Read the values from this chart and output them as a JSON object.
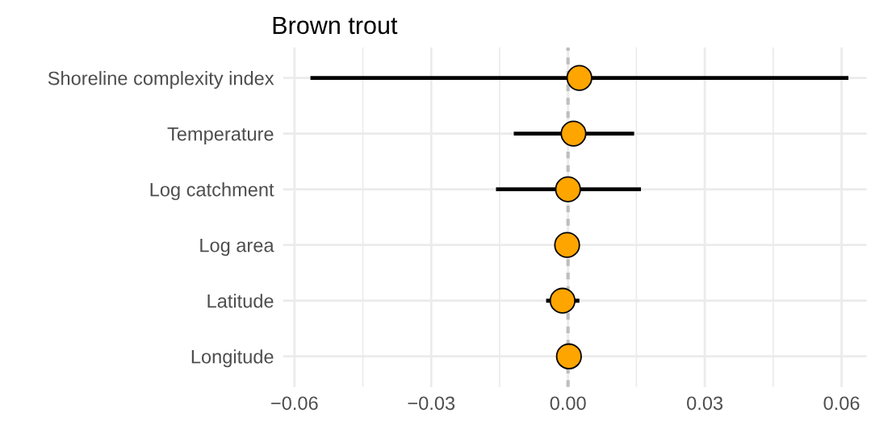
{
  "chart_data": {
    "type": "scatter",
    "orientation": "horizontal",
    "title": "Brown trout",
    "categories": [
      "Shoreline complexity index",
      "Temperature",
      "Log catchment",
      "Log area",
      "Latitude",
      "Longitude"
    ],
    "values": [
      0.0025,
      0.0012,
      0.0,
      -0.0002,
      -0.0012,
      0.0002
    ],
    "errors": [
      [
        -0.0565,
        0.0615
      ],
      [
        -0.0119,
        0.0145
      ],
      [
        -0.0158,
        0.016
      ],
      null,
      [
        -0.0048,
        0.0025
      ],
      null
    ],
    "color": "#ffa500",
    "marker": "circle",
    "grid": true,
    "xlim": [
      -0.0625,
      0.0655
    ],
    "xticks": [
      {
        "value": -0.06,
        "label": "−0.06"
      },
      {
        "value": -0.03,
        "label": "−0.03"
      },
      {
        "value": 0.0,
        "label": "0.00"
      },
      {
        "value": 0.03,
        "label": "0.03"
      },
      {
        "value": 0.06,
        "label": "0.06"
      }
    ],
    "ref_lines": [
      {
        "axis": "x",
        "value": 0,
        "color": "#bebebe",
        "line_style": "dotted"
      }
    ]
  }
}
